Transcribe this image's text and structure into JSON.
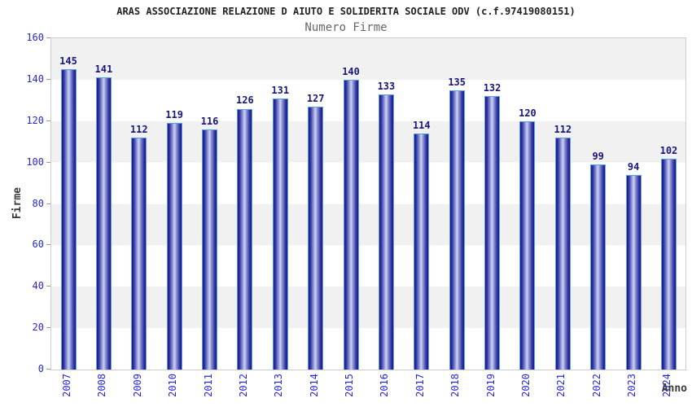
{
  "header": {
    "title": "ARAS ASSOCIAZIONE RELAZIONE D AIUTO E SOLIDERITA SOCIALE ODV (c.f.97419080151)",
    "subtitle": "Numero Firme"
  },
  "colors": {
    "title": "#222222",
    "subtitle": "#666666",
    "axis_title": "#3a3a3a",
    "tick_label_blue": "#2727d8",
    "value_label_navy": "#17177d",
    "bar_dark": "#1a1a8c",
    "bar_mid": "#8f97d8",
    "bar_light": "#ced4f4",
    "bar_border": "#58a0e8",
    "band_gray": "#f1f1f1",
    "plot_border": "#cccccc",
    "tick_mark": "#999999"
  },
  "chart_data": {
    "type": "bar",
    "title": "ARAS ASSOCIAZIONE RELAZIONE D AIUTO E SOLIDERITA SOCIALE ODV (c.f.97419080151)",
    "subtitle": "Numero Firme",
    "categories": [
      "2007",
      "2008",
      "2009",
      "2010",
      "2011",
      "2012",
      "2013",
      "2014",
      "2015",
      "2016",
      "2017",
      "2018",
      "2019",
      "2020",
      "2021",
      "2022",
      "2023",
      "2024"
    ],
    "values": [
      145,
      141,
      112,
      119,
      116,
      126,
      131,
      127,
      140,
      133,
      114,
      135,
      132,
      120,
      112,
      99,
      94,
      102
    ],
    "xlabel": "Anno",
    "ylabel": "Firme",
    "ylim": [
      0,
      160
    ],
    "ytick_step": 20,
    "yticks": [
      0,
      20,
      40,
      60,
      80,
      100,
      120,
      140,
      160
    ],
    "grid": "alternating-horizontal-bands",
    "legend": "none",
    "bar_style": "3d-cylinder-gradient",
    "value_labels": "above-bars"
  }
}
